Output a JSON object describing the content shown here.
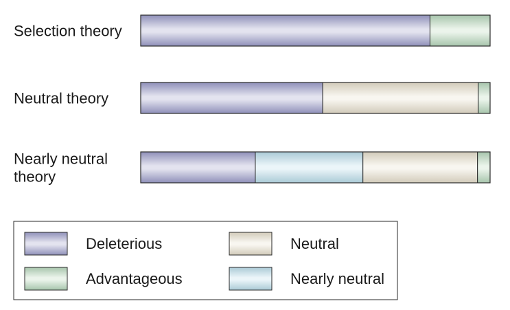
{
  "chart_data": {
    "type": "bar",
    "orientation": "horizontal",
    "stacked": true,
    "normalized": true,
    "categories": [
      [
        "Selection theory"
      ],
      [
        "Neutral theory"
      ],
      [
        "Nearly neutral",
        "theory"
      ]
    ],
    "series": [
      {
        "name": "Deleterious",
        "color": "#9a9cc7",
        "values": [
          0.828,
          0.521,
          0.328
        ]
      },
      {
        "name": "Nearly neutral",
        "color": "#b9dde8",
        "values": [
          0.0,
          0.0,
          0.308
        ]
      },
      {
        "name": "Neutral",
        "color": "#e7dfc9",
        "values": [
          0.0,
          0.445,
          0.328
        ]
      },
      {
        "name": "Advantageous",
        "color": "#b6d8b8",
        "values": [
          0.172,
          0.034,
          0.036
        ]
      }
    ],
    "legend": {
      "placement": "bottom",
      "order": [
        "Deleterious",
        "Neutral",
        "Advantageous",
        "Nearly neutral"
      ]
    },
    "title": "",
    "xlabel": "",
    "ylabel": ""
  }
}
